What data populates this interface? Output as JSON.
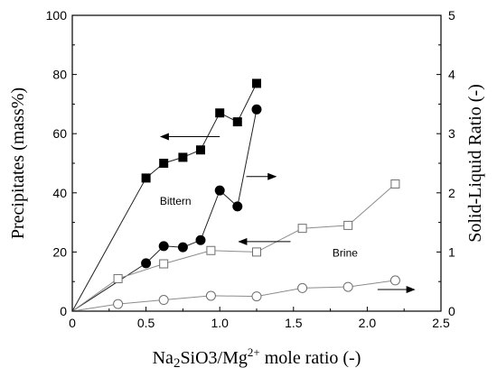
{
  "chart_data": {
    "type": "line",
    "xlabel": "Na2SiO3/Mg2+ mole ratio  (-)",
    "xlabel_parts": {
      "a": "Na",
      "b": "2",
      "c": "SiO3/Mg",
      "d": "2+",
      "e": " mole ratio  (-)"
    },
    "ylabel_left": "Precipitates (mass%)",
    "ylabel_right": "Solid-Liquid Ratio  (-)",
    "xlim": [
      0,
      2.5
    ],
    "ylim_left": [
      0,
      100
    ],
    "ylim_right": [
      0,
      5
    ],
    "x_ticks": [
      "0",
      "0.5",
      "1.0",
      "1.5",
      "2.0",
      "2.5"
    ],
    "y_left_ticks": [
      "0",
      "20",
      "40",
      "60",
      "80",
      "100"
    ],
    "y_right_ticks": [
      "0",
      "1",
      "2",
      "3",
      "4",
      "5"
    ],
    "grid": false,
    "series": [
      {
        "axis": "left",
        "marker": "square",
        "filled": true,
        "x": [
          0,
          0.5,
          0.62,
          0.75,
          0.87,
          1.0,
          1.12,
          1.25
        ],
        "y": [
          0,
          45,
          50,
          52,
          54.5,
          67,
          64,
          77
        ]
      },
      {
        "axis": "right",
        "marker": "circle",
        "filled": true,
        "x": [
          0,
          0.5,
          0.62,
          0.75,
          0.87,
          1.0,
          1.12,
          1.25
        ],
        "y": [
          0,
          0.81,
          1.1,
          1.08,
          1.2,
          2.04,
          1.77,
          3.41
        ]
      },
      {
        "axis": "left",
        "marker": "square",
        "filled": false,
        "x": [
          0,
          0.31,
          0.62,
          0.94,
          1.25,
          1.56,
          1.87,
          2.19
        ],
        "y": [
          0,
          11,
          16,
          20.5,
          20,
          28,
          29,
          43
        ]
      },
      {
        "axis": "right",
        "marker": "circle",
        "filled": false,
        "x": [
          0,
          0.31,
          0.62,
          0.94,
          1.25,
          1.56,
          1.87,
          2.19
        ],
        "y": [
          0,
          0.12,
          0.19,
          0.26,
          0.25,
          0.39,
          0.41,
          0.52
        ]
      }
    ],
    "annotations": [
      {
        "text": "Bittern",
        "x": 0.7,
        "y": 36
      },
      {
        "text": "Brine",
        "x": 1.85,
        "y": 18.5
      }
    ],
    "arrows": [
      {
        "direction": "left",
        "x_from": 1.0,
        "x_to": 0.6,
        "y": 59
      },
      {
        "direction": "right",
        "x_from": 1.18,
        "x_to": 1.38,
        "y": 45.5
      },
      {
        "direction": "left",
        "x_from": 1.48,
        "x_to": 1.13,
        "y": 23.5
      },
      {
        "direction": "right",
        "x_from": 2.07,
        "x_to": 2.32,
        "y": 7.3
      }
    ]
  }
}
